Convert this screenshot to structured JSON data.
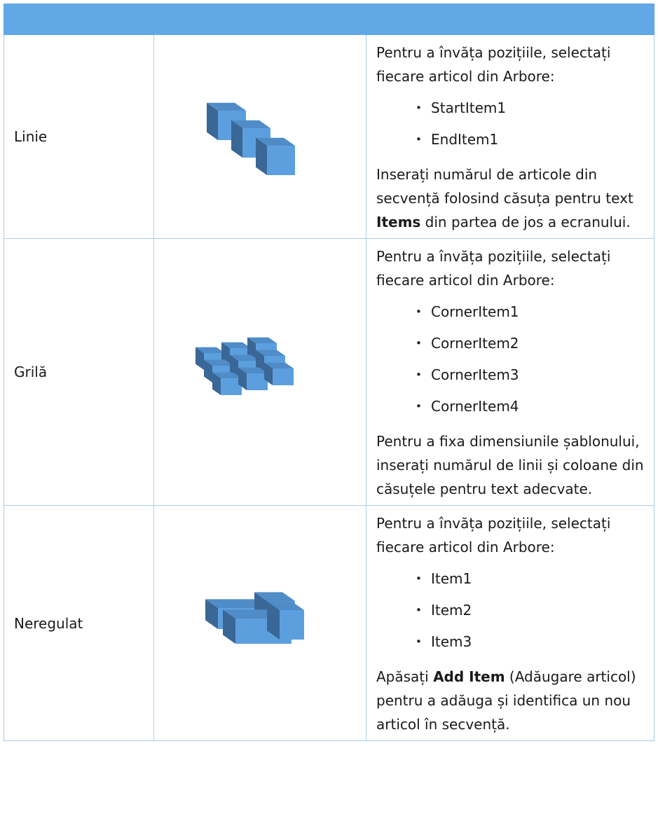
{
  "table": {
    "rows": [
      {
        "name": "Linie",
        "intro": "Pentru a învăța pozițiile, selectați fiecare articol din Arbore:",
        "items": [
          "StartItem1",
          "EndItem1"
        ],
        "note": [
          {
            "text": "Inserați numărul de articole din secvență folosind căsuța pentru text "
          },
          {
            "text": "Items",
            "bold": true
          },
          {
            "text": " din partea de jos a ecranului."
          }
        ]
      },
      {
        "name": "Grilă",
        "intro": "Pentru a învăța pozițiile, selectați fiecare articol din Arbore:",
        "items": [
          "CornerItem1",
          "CornerItem2",
          "CornerItem3",
          "CornerItem4"
        ],
        "note": [
          {
            "text": "Pentru a fixa dimensiunile șablonului, inserați numărul de linii și coloane din căsuțele pentru text adecvate."
          }
        ]
      },
      {
        "name": "Neregulat",
        "intro": "Pentru a învăța pozițiile, selectați fiecare articol din Arbore:",
        "items": [
          "Item1",
          "Item2",
          "Item3"
        ],
        "note": [
          {
            "text": "Apăsați "
          },
          {
            "text": "Add Item",
            "bold": true
          },
          {
            "text": " (Adăugare articol) pentru a adăuga și identifica un nou articol în secvență."
          }
        ]
      }
    ]
  }
}
